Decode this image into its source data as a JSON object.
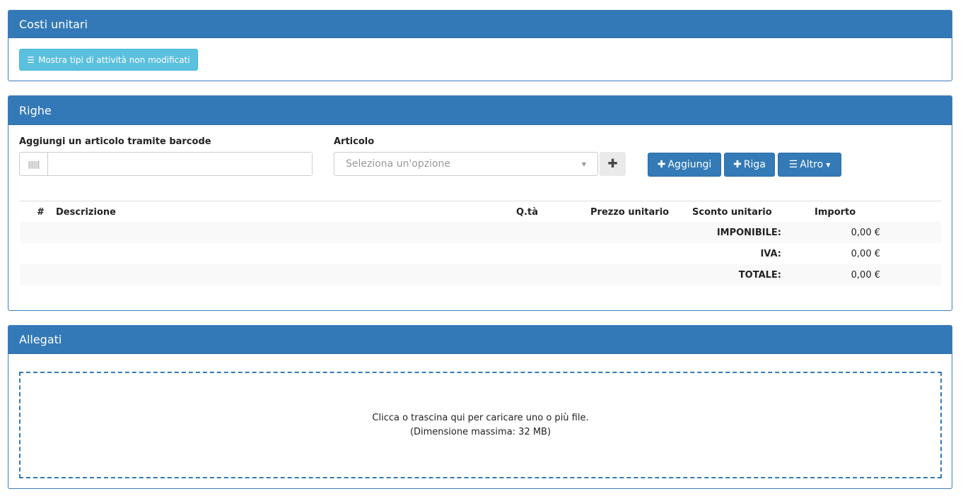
{
  "costi": {
    "title": "Costi unitari",
    "show_button": "Mostra tipi di attività non modificati"
  },
  "righe": {
    "title": "Righe",
    "barcode_label": "Aggiungi un articolo tramite barcode",
    "barcode_value": "",
    "articolo_label": "Articolo",
    "articolo_placeholder": "Seleziona un'opzione",
    "add_label": "Aggiungi",
    "riga_label": "Riga",
    "altro_label": "Altro",
    "columns": [
      "#",
      "Descrizione",
      "Q.tà",
      "Prezzo unitario",
      "Sconto unitario",
      "Importo"
    ],
    "totals": [
      {
        "label": "IMPONIBILE:",
        "value": "0,00 €"
      },
      {
        "label": "IVA:",
        "value": "0,00 €"
      },
      {
        "label": "TOTALE:",
        "value": "0,00 €"
      }
    ]
  },
  "allegati": {
    "title": "Allegati",
    "drop_line1": "Clicca o trascina qui per caricare uno o più file.",
    "drop_line2": "(Dimensione massima: 32 MB)"
  },
  "colors": {
    "header": "#3479b7",
    "info_button": "#5bc0de",
    "primary_button": "#337ab7"
  }
}
